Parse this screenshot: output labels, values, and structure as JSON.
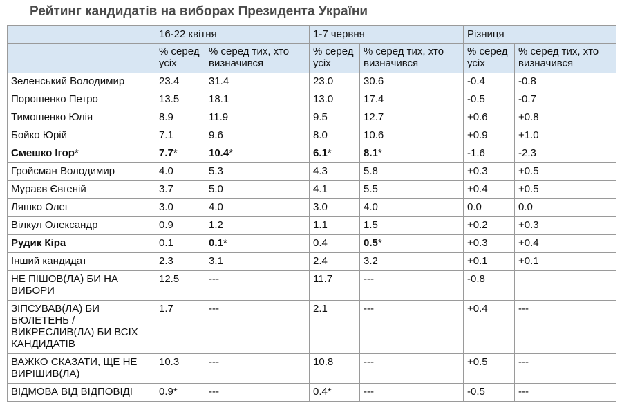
{
  "title": "Рейтинг кандидатів на виборах Президента України",
  "columns": {
    "period1": "16-22 квітня",
    "period2": "1-7 червня",
    "diff": "Різниця",
    "sub_all": "% серед усіх",
    "sub_decided": "% серед тих, хто визначився"
  },
  "rows": [
    {
      "name": "Зеленський Володимир",
      "p1_all": "23.4",
      "p1_dec": "31.4",
      "p2_all": "23.0",
      "p2_dec": "30.6",
      "d_all": "-0.4",
      "d_dec": "-0.8"
    },
    {
      "name": "Порошенко Петро",
      "p1_all": "13.5",
      "p1_dec": "18.1",
      "p2_all": "13.0",
      "p2_dec": "17.4",
      "d_all": "-0.5",
      "d_dec": "-0.7"
    },
    {
      "name": "Тимошенко Юлія",
      "p1_all": "8.9",
      "p1_dec": "11.9",
      "p2_all": "9.5",
      "p2_dec": "12.7",
      "d_all": "+0.6",
      "d_dec": "+0.8"
    },
    {
      "name": "Бойко Юрій",
      "p1_all": "7.1",
      "p1_dec": "9.6",
      "p2_all": "8.0",
      "p2_dec": "10.6",
      "d_all": "+0.9",
      "d_dec": "+1.0"
    },
    {
      "name": "Смешко Ігор",
      "name_star": "*",
      "p1_all": "7.7",
      "p1_all_star": "*",
      "p1_dec": "10.4",
      "p1_dec_star": "*",
      "p2_all": "6.1",
      "p2_all_star": "*",
      "p2_dec": "8.1",
      "p2_dec_star": "*",
      "d_all": "-1.6",
      "d_dec": "-2.3"
    },
    {
      "name": "Гройсман Володимир",
      "p1_all": "4.0",
      "p1_dec": "5.3",
      "p2_all": "4.3",
      "p2_dec": "5.8",
      "d_all": "+0.3",
      "d_dec": "+0.5"
    },
    {
      "name": "Мураєв Євгеній",
      "p1_all": "3.7",
      "p1_dec": "5.0",
      "p2_all": "4.1",
      "p2_dec": "5.5",
      "d_all": "+0.4",
      "d_dec": "+0.5"
    },
    {
      "name": "Ляшко Олег",
      "p1_all": "3.0",
      "p1_dec": "4.0",
      "p2_all": "3.0",
      "p2_dec": "4.0",
      "d_all": "0.0",
      "d_dec": "0.0"
    },
    {
      "name": "Вілкул Олександр",
      "p1_all": "0.9",
      "p1_dec": "1.2",
      "p2_all": "1.1",
      "p2_dec": "1.5",
      "d_all": "+0.2",
      "d_dec": "+0.3"
    },
    {
      "name": "Рудик Кіра",
      "p1_all": "0.1",
      "p1_dec": "0.1",
      "p1_dec_star": "*",
      "p2_all": "0.4",
      "p2_dec": "0.5",
      "p2_dec_star": "*",
      "d_all": "+0.3",
      "d_dec": "+0.4"
    },
    {
      "name": "Інший кандидат",
      "p1_all": "2.3",
      "p1_dec": "3.1",
      "p2_all": "2.4",
      "p2_dec": "3.2",
      "d_all": "+0.1",
      "d_dec": "+0.1"
    },
    {
      "name": "НЕ ПІШОВ(ЛА) БИ НА ВИБОРИ",
      "p1_all": "12.5",
      "p1_dec": "---",
      "p2_all": "11.7",
      "p2_dec": "---",
      "d_all": "-0.8",
      "d_dec": ""
    },
    {
      "name": "ЗІПСУВАВ(ЛА) БИ БЮЛЕТЕНЬ / ВИКРЕСЛИВ(ЛА) БИ ВСІХ КАНДИДАТІВ",
      "p1_all": "1.7",
      "p1_dec": "---",
      "p2_all": "2.1",
      "p2_dec": "---",
      "d_all": "+0.4",
      "d_dec": "---"
    },
    {
      "name": "ВАЖКО СКАЗАТИ, ЩЕ НЕ ВИРІШИВ(ЛА)",
      "p1_all": "10.3",
      "p1_dec": "---",
      "p2_all": "10.8",
      "p2_dec": "---",
      "d_all": "+0.5",
      "d_dec": "---"
    },
    {
      "name": "ВІДМОВА ВІД ВІДПОВІДІ",
      "p1_all": "0.9",
      "p1_all_star": "*",
      "p1_dec": "---",
      "p2_all": "0.4",
      "p2_all_star": "*",
      "p2_dec": "---",
      "d_all": "-0.5",
      "d_dec": "---"
    }
  ]
}
